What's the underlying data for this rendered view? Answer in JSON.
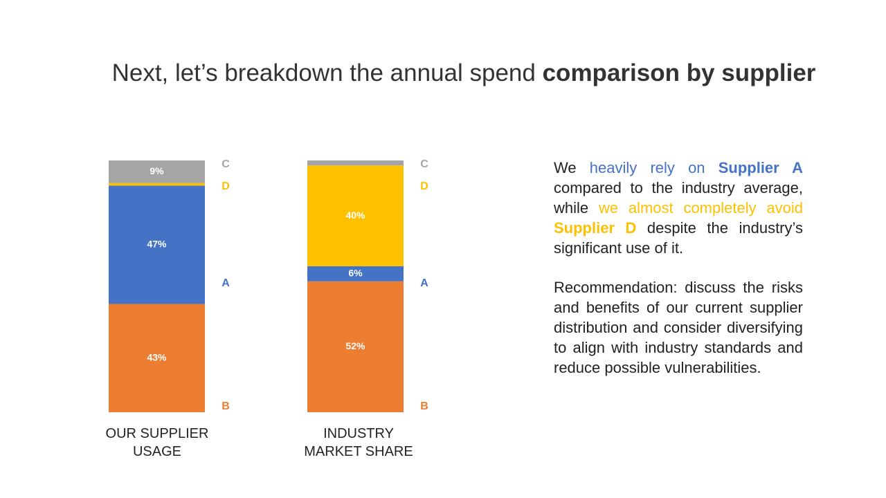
{
  "title": {
    "normal": "Next, let’s breakdown the annual spend ",
    "bold": "comparison by supplier"
  },
  "chart_data": {
    "type": "stacked_bar",
    "categories": [
      "OUR SUPPLIER USAGE",
      "INDUSTRY MARKET SHARE"
    ],
    "ylim": [
      0,
      100
    ],
    "series": [
      {
        "name": "B",
        "color": "#ED7D31",
        "values": [
          43,
          52
        ],
        "value_labels": [
          "43%",
          "52%"
        ]
      },
      {
        "name": "A",
        "color": "#4472C4",
        "values": [
          47,
          6
        ],
        "value_labels": [
          "47%",
          "6%"
        ]
      },
      {
        "name": "D",
        "color": "#FFC000",
        "values": [
          1,
          40
        ],
        "value_labels": [
          null,
          "40%"
        ]
      },
      {
        "name": "C",
        "color": "#A5A5A5",
        "values": [
          9,
          2
        ],
        "value_labels": [
          "9%",
          null
        ]
      }
    ]
  },
  "paragraphs": [
    [
      "We ",
      "heavily rely on ",
      "Supplier A",
      " compared to the industry average, while ",
      "we almost completely avoid ",
      "Supplier D",
      " despite the industry’s significant use of it."
    ],
    [
      "Recommendation: discuss the risks and benefits of our current supplier distribution and consider diversifying to align with industry standards and reduce possible vulnerabilities."
    ]
  ]
}
